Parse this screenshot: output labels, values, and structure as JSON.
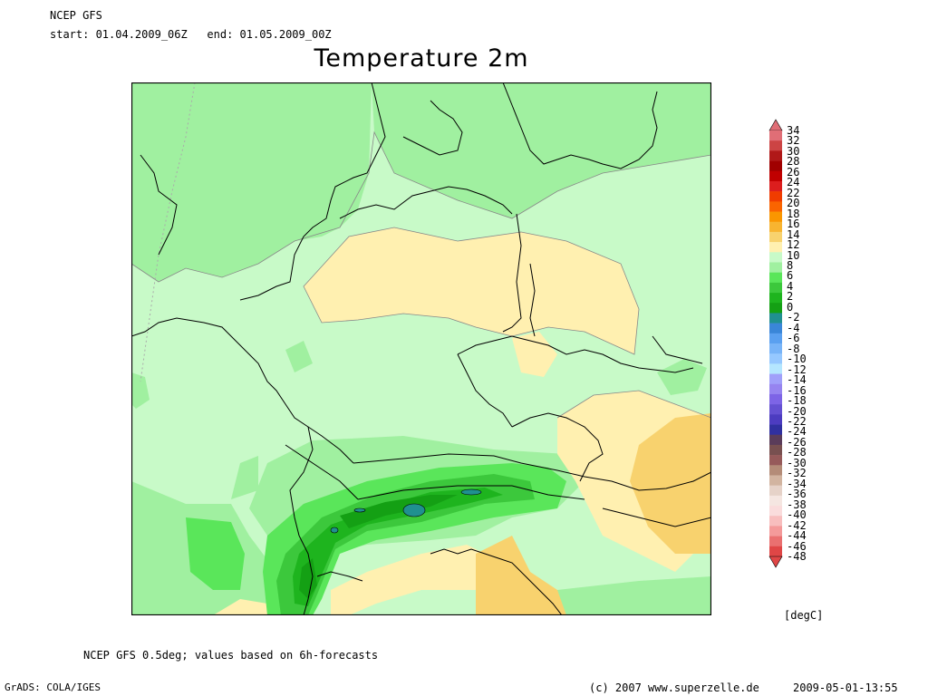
{
  "header": {
    "model": "NCEP GFS",
    "period": "start: 01.04.2009_06Z   end: 01.05.2009_00Z",
    "title": "Temperature 2m"
  },
  "footer": {
    "note": "NCEP GFS 0.5deg; values based on 6h-forecasts",
    "grads": "GrADS: COLA/IGES",
    "copyright": "(c) 2007 www.superzelle.de",
    "timestamp": "2009-05-01-13:55"
  },
  "legend": {
    "unit": "[degC]",
    "levels": [
      "34",
      "32",
      "30",
      "28",
      "26",
      "24",
      "22",
      "20",
      "18",
      "16",
      "14",
      "12",
      "10",
      "8",
      "6",
      "4",
      "2",
      "0",
      "-2",
      "-4",
      "-6",
      "-8",
      "-10",
      "-12",
      "-14",
      "-16",
      "-18",
      "-20",
      "-22",
      "-24",
      "-26",
      "-28",
      "-30",
      "-32",
      "-34",
      "-36",
      "-38",
      "-40",
      "-42",
      "-44",
      "-46",
      "-48"
    ],
    "colors": [
      "#e06e76",
      "#cc4444",
      "#b01818",
      "#a00000",
      "#c00000",
      "#dc1e1e",
      "#f03c00",
      "#fa6400",
      "#fa9600",
      "#f8b430",
      "#f8d26e",
      "#fff0b0",
      "#c8fac8",
      "#a0f0a0",
      "#5ae65a",
      "#3cc83c",
      "#1eb41e",
      "#14a014",
      "#209090",
      "#3a86d8",
      "#5aa0f0",
      "#78b4f8",
      "#96c8ff",
      "#b4e6ff",
      "#a0a0fa",
      "#9684f0",
      "#7d64e6",
      "#6450d2",
      "#4c3cc0",
      "#3030a0",
      "#5a3c5a",
      "#785050",
      "#965a5a",
      "#b48c78",
      "#d2b4a0",
      "#e6d2c8",
      "#f5e6e1",
      "#fadcdc",
      "#f8bebe",
      "#f49a9a",
      "#ea7070",
      "#e04646"
    ]
  }
}
